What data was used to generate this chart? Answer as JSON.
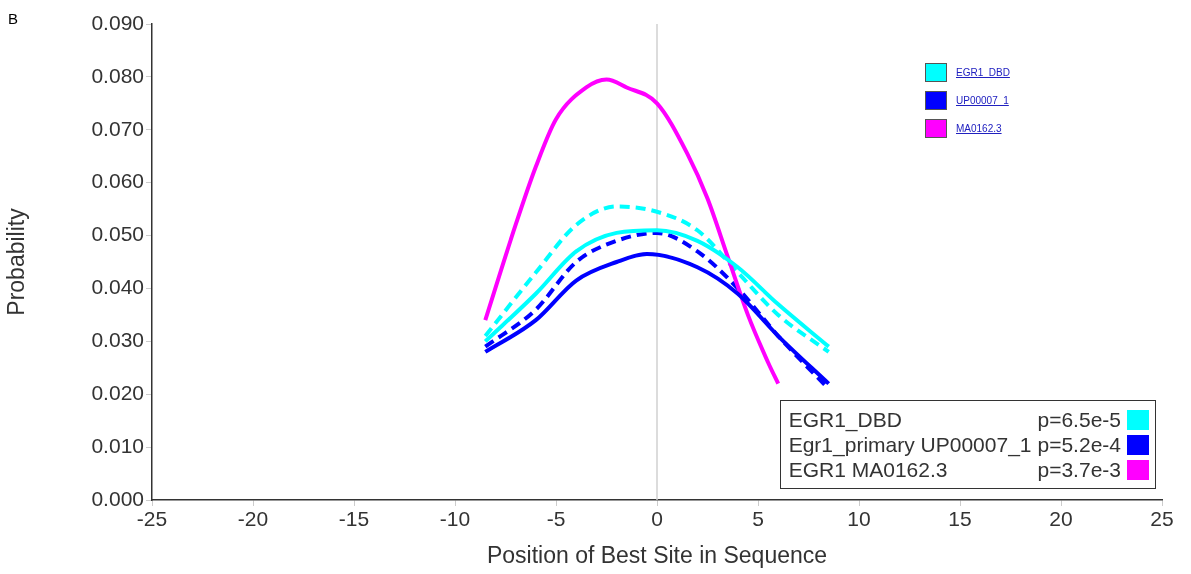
{
  "chart_data": {
    "type": "line",
    "xlabel": "Position of Best Site in Sequence",
    "ylabel": "Probability",
    "xlim": [
      -25,
      25
    ],
    "xticks": [
      -25,
      -20,
      -15,
      -10,
      -5,
      0,
      5,
      10,
      15,
      20,
      25
    ],
    "ylim": [
      0,
      0.09
    ],
    "yticks": [
      {
        "value": 0,
        "label": "0.000"
      },
      {
        "value": 0.01,
        "label": "0.010"
      },
      {
        "value": 0.02,
        "label": "0.020"
      },
      {
        "value": 0.03,
        "label": "0.030"
      },
      {
        "value": 0.04,
        "label": "0.040"
      },
      {
        "value": 0.05,
        "label": "0.050"
      },
      {
        "value": 0.06,
        "label": "0.060"
      },
      {
        "value": 0.07,
        "label": "0.070"
      },
      {
        "value": 0.08,
        "label": "0.080"
      },
      {
        "value": 0.09,
        "label": "0.090"
      }
    ],
    "grid": false,
    "legend": "bottom right",
    "marker": "none",
    "series": [
      {
        "name": "EGR1_DBD p=6.5e-5",
        "color": "#00ffff",
        "line_style": "solid",
        "x": [
          -8.5,
          -6,
          -4,
          -2,
          0,
          2,
          4,
          6,
          8.5
        ],
        "values": [
          0.03,
          0.039,
          0.047,
          0.0505,
          0.051,
          0.049,
          0.044,
          0.037,
          0.029
        ]
      },
      {
        "name": "Egr1_primary UP00007_1 p=5.2e-4",
        "color": "#0000ff",
        "line_style": "solid",
        "x": [
          -8.5,
          -6,
          -4,
          -2,
          -0.5,
          2,
          4,
          6,
          8.5
        ],
        "values": [
          0.028,
          0.034,
          0.0415,
          0.045,
          0.0465,
          0.044,
          0.039,
          0.031,
          0.022
        ]
      },
      {
        "name": "EGR1 MA0162.3 p=3.7e-3",
        "color": "#ff00ff",
        "line_style": "solid",
        "x": [
          -8.5,
          -7,
          -6,
          -5,
          -3.5,
          -2.5,
          -1.5,
          0,
          1.5,
          2.5,
          3.5,
          4.5,
          5.5,
          6
        ],
        "values": [
          0.034,
          0.052,
          0.063,
          0.072,
          0.078,
          0.0795,
          0.078,
          0.075,
          0.0655,
          0.057,
          0.046,
          0.035,
          0.026,
          0.022
        ]
      },
      {
        "color": "#00ffff",
        "line_style": "dashed",
        "x": [
          -8.5,
          -6,
          -4,
          -2,
          0,
          2,
          4,
          6,
          8.5
        ],
        "values": [
          0.031,
          0.043,
          0.052,
          0.0555,
          0.0545,
          0.051,
          0.043,
          0.035,
          0.028
        ]
      },
      {
        "color": "#0000ff",
        "line_style": "dashed",
        "x": [
          -8.5,
          -6,
          -4,
          -2,
          0,
          2,
          4,
          6,
          8.5
        ],
        "values": [
          0.029,
          0.036,
          0.045,
          0.049,
          0.0505,
          0.047,
          0.04,
          0.031,
          0.021
        ]
      }
    ],
    "ref_lines": [
      {
        "axis": "x",
        "value": 0,
        "color": "#d0d0d0"
      }
    ],
    "annotations": [
      "B",
      "EGR1_DBD",
      "UP00007_1",
      "MA0162.3"
    ]
  }
}
